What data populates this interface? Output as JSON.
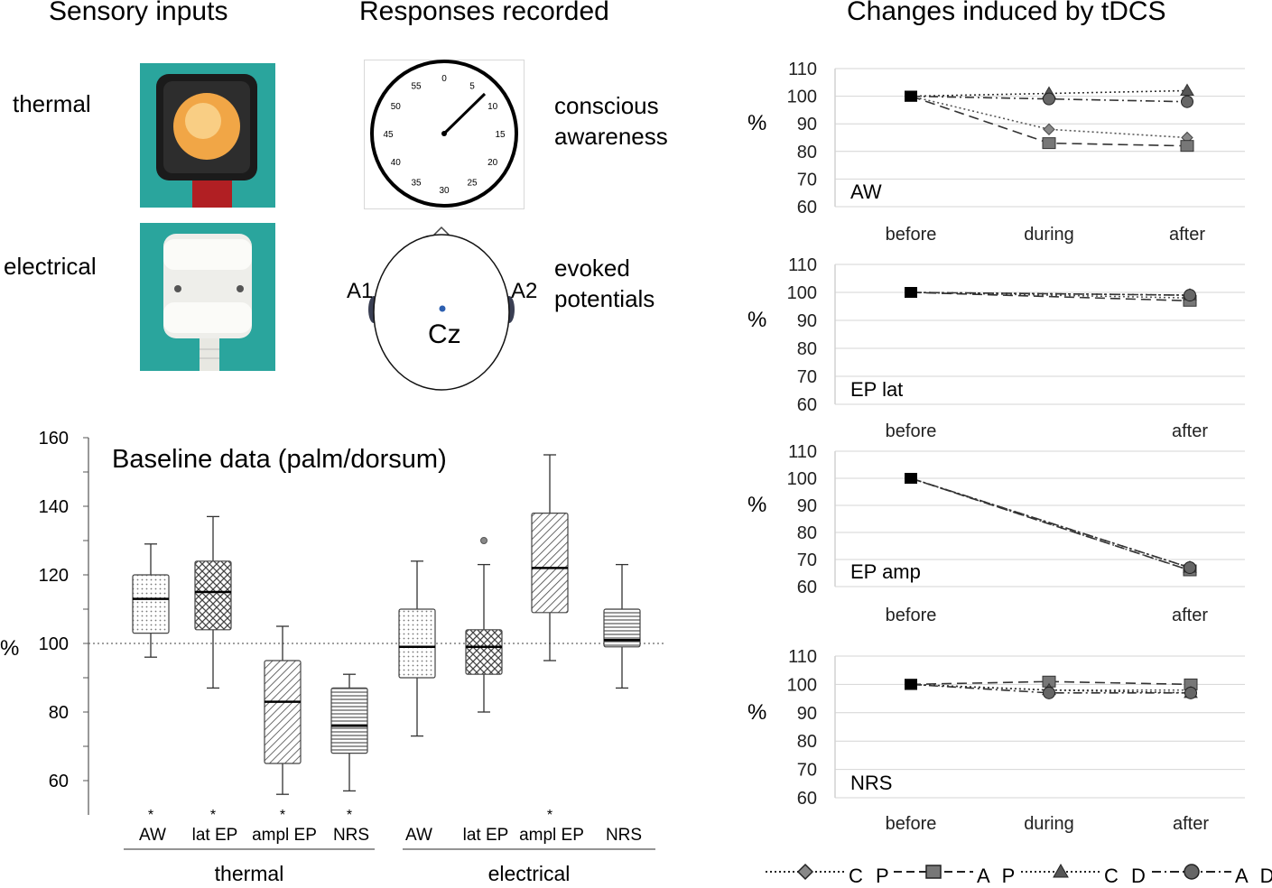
{
  "headers": {
    "sensory": "Sensory inputs",
    "responses": "Responses recorded",
    "changes": "Changes induced by tDCS"
  },
  "sensory": {
    "thermal": "thermal",
    "electrical": "electrical"
  },
  "responses": {
    "awareness_line1": "conscious",
    "awareness_line2": "awareness",
    "evoked_line1": "evoked",
    "evoked_line2": "potentials"
  },
  "clock": {
    "numbers": [
      "0",
      "5",
      "10",
      "15",
      "20",
      "25",
      "30",
      "35",
      "40",
      "45",
      "50",
      "55"
    ]
  },
  "head": {
    "left_ear": "A1",
    "right_ear": "A2",
    "electrode": "Cz"
  },
  "chart_data": [
    {
      "type": "box",
      "title": "Baseline data (palm/dorsum)",
      "ylabel": "%",
      "ylim": [
        50,
        160
      ],
      "yticks": [
        60,
        80,
        100,
        120,
        140,
        160
      ],
      "reference_line": 100,
      "groups": [
        {
          "name": "thermal",
          "boxes": [
            {
              "label": "AW",
              "significant": true,
              "pattern": "dots",
              "whisker_low": 96,
              "q1": 103,
              "median": 113,
              "q3": 120,
              "whisker_high": 129
            },
            {
              "label": "lat EP",
              "significant": true,
              "pattern": "checker",
              "whisker_low": 87,
              "q1": 104,
              "median": 115,
              "q3": 124,
              "whisker_high": 137
            },
            {
              "label": "ampl EP",
              "significant": true,
              "pattern": "diagonal",
              "whisker_low": 56,
              "q1": 65,
              "median": 83,
              "q3": 95,
              "whisker_high": 105
            },
            {
              "label": "NRS",
              "significant": true,
              "pattern": "horizontal",
              "whisker_low": 57,
              "q1": 68,
              "median": 76,
              "q3": 87,
              "whisker_high": 91
            }
          ]
        },
        {
          "name": "electrical",
          "boxes": [
            {
              "label": "AW",
              "significant": false,
              "pattern": "dots",
              "whisker_low": 73,
              "q1": 90,
              "median": 99,
              "q3": 110,
              "whisker_high": 124
            },
            {
              "label": "lat EP",
              "significant": false,
              "pattern": "checker",
              "whisker_low": 80,
              "q1": 91,
              "median": 99,
              "q3": 104,
              "whisker_high": 123,
              "outlier": 130
            },
            {
              "label": "ampl EP",
              "significant": true,
              "pattern": "diagonal",
              "whisker_low": 95,
              "q1": 109,
              "median": 122,
              "q3": 138,
              "whisker_high": 155
            },
            {
              "label": "NRS",
              "significant": false,
              "pattern": "horizontal",
              "whisker_low": 87,
              "q1": 99,
              "median": 101,
              "q3": 110,
              "whisker_high": 123
            }
          ]
        }
      ]
    },
    {
      "type": "line",
      "panel": "AW",
      "ylabel": "%",
      "ylim": [
        60,
        110
      ],
      "x": [
        "before",
        "during",
        "after"
      ],
      "series": [
        {
          "name": "C P",
          "values": [
            100,
            88,
            85
          ]
        },
        {
          "name": "A P",
          "values": [
            100,
            83,
            82
          ]
        },
        {
          "name": "C D",
          "values": [
            100,
            101,
            102
          ]
        },
        {
          "name": "A D",
          "values": [
            100,
            99,
            98
          ]
        }
      ]
    },
    {
      "type": "line",
      "panel": "EP lat",
      "ylabel": "%",
      "ylim": [
        60,
        110
      ],
      "x": [
        "before",
        "after"
      ],
      "series": [
        {
          "name": "C P",
          "values": [
            100,
            98
          ]
        },
        {
          "name": "A P",
          "values": [
            100,
            97
          ]
        },
        {
          "name": "C D",
          "values": [
            100,
            99
          ]
        },
        {
          "name": "A D",
          "values": [
            100,
            99
          ]
        }
      ]
    },
    {
      "type": "line",
      "panel": "EP amp",
      "ylabel": "%",
      "ylim": [
        60,
        110
      ],
      "x": [
        "before",
        "after"
      ],
      "series": [
        {
          "name": "C P",
          "values": [
            100,
            66
          ]
        },
        {
          "name": "A P",
          "values": [
            100,
            66
          ]
        },
        {
          "name": "C D",
          "values": [
            100,
            67
          ]
        },
        {
          "name": "A D",
          "values": [
            100,
            67
          ]
        }
      ]
    },
    {
      "type": "line",
      "panel": "NRS",
      "ylabel": "%",
      "ylim": [
        60,
        110
      ],
      "x": [
        "before",
        "during",
        "after"
      ],
      "series": [
        {
          "name": "C P",
          "values": [
            100,
            98,
            98
          ]
        },
        {
          "name": "A P",
          "values": [
            100,
            101,
            100
          ]
        },
        {
          "name": "C D",
          "values": [
            100,
            98,
            97
          ]
        },
        {
          "name": "A D",
          "values": [
            100,
            97,
            97
          ]
        }
      ]
    }
  ],
  "legend": [
    {
      "name": "C P",
      "marker": "diamond",
      "color": "#888888",
      "dash": "dotted"
    },
    {
      "name": "A P",
      "marker": "square",
      "color": "#777777",
      "dash": "dashed"
    },
    {
      "name": "C D",
      "marker": "triangle",
      "color": "#555555",
      "dash": "dotted"
    },
    {
      "name": "A D",
      "marker": "circle",
      "color": "#666666",
      "dash": "dash-dot"
    }
  ]
}
